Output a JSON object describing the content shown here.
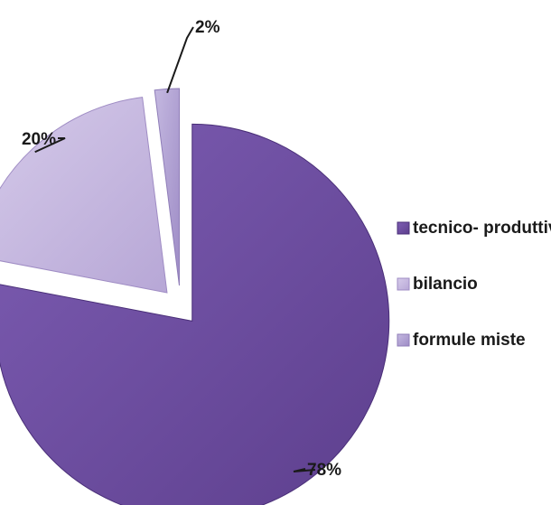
{
  "chart_data": {
    "type": "pie",
    "title": "",
    "slices": [
      {
        "label": "tecnico- produttivi",
        "value": 78,
        "display": "78%",
        "color": "#6a4a9c",
        "edge": "#4a2f78"
      },
      {
        "label": "bilancio",
        "value": 20,
        "display": "20%",
        "color": "#c7b8e0",
        "edge": "#9f8cc4"
      },
      {
        "label": "formule miste",
        "value": 2,
        "display": "2%",
        "color": "#b3a4d4",
        "edge": "#8f7db8"
      }
    ],
    "legend_position": "right",
    "exploded": true
  }
}
